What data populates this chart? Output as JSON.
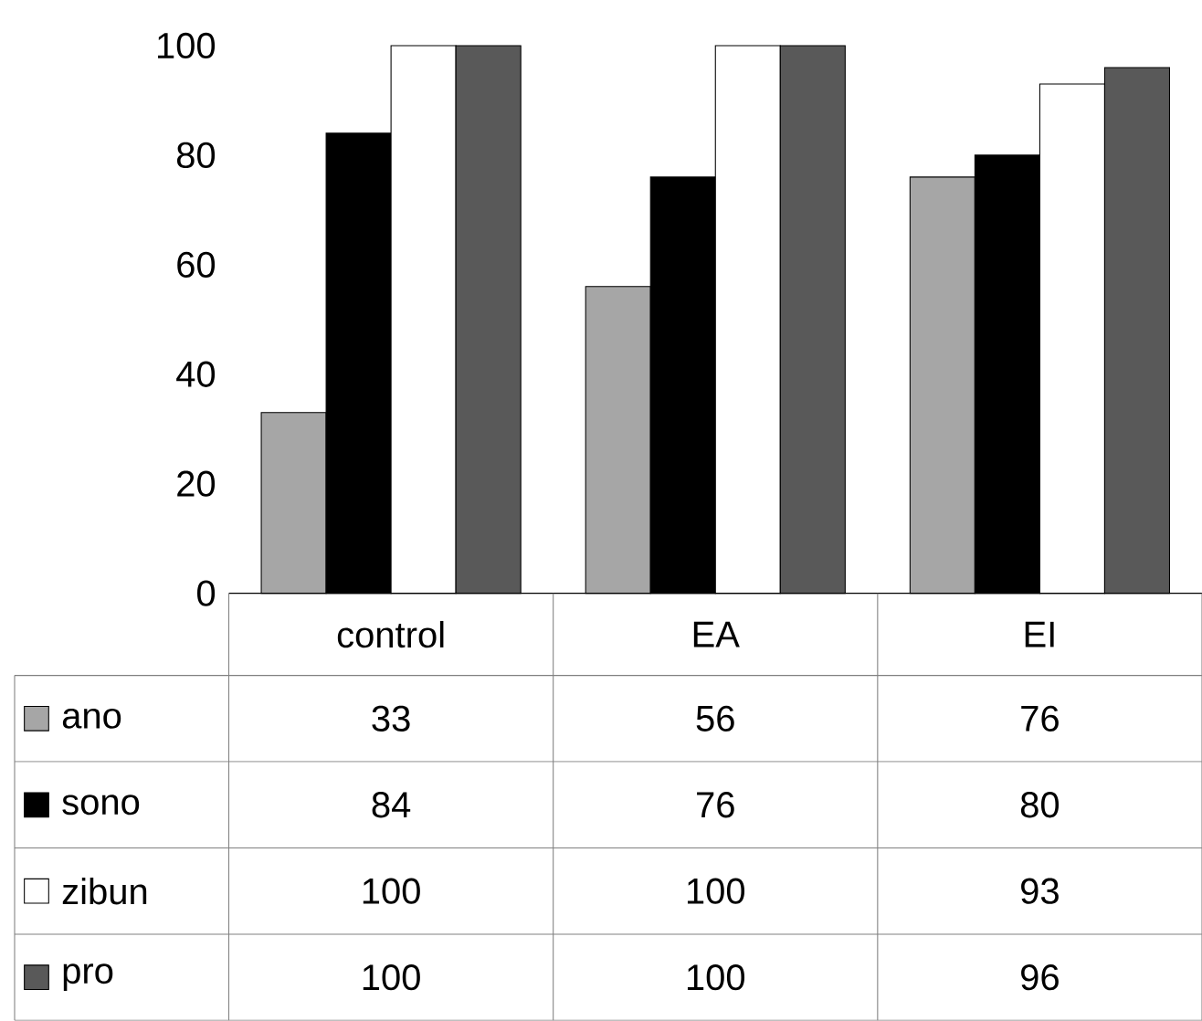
{
  "chart_data": {
    "type": "bar",
    "categories": [
      "control",
      "EA",
      "EI"
    ],
    "series": [
      {
        "name": "ano",
        "color": "#a6a6a6",
        "values": [
          33,
          56,
          76
        ]
      },
      {
        "name": "sono",
        "color": "#000000",
        "values": [
          84,
          76,
          80
        ]
      },
      {
        "name": "zibun",
        "color": "#ffffff",
        "values": [
          100,
          100,
          93
        ]
      },
      {
        "name": "pro",
        "color": "#595959",
        "values": [
          100,
          100,
          96
        ]
      }
    ],
    "ylim": [
      0,
      100
    ],
    "yticks": [
      0,
      20,
      40,
      60,
      80,
      100
    ],
    "data_labels": true,
    "legend": "bottom"
  }
}
